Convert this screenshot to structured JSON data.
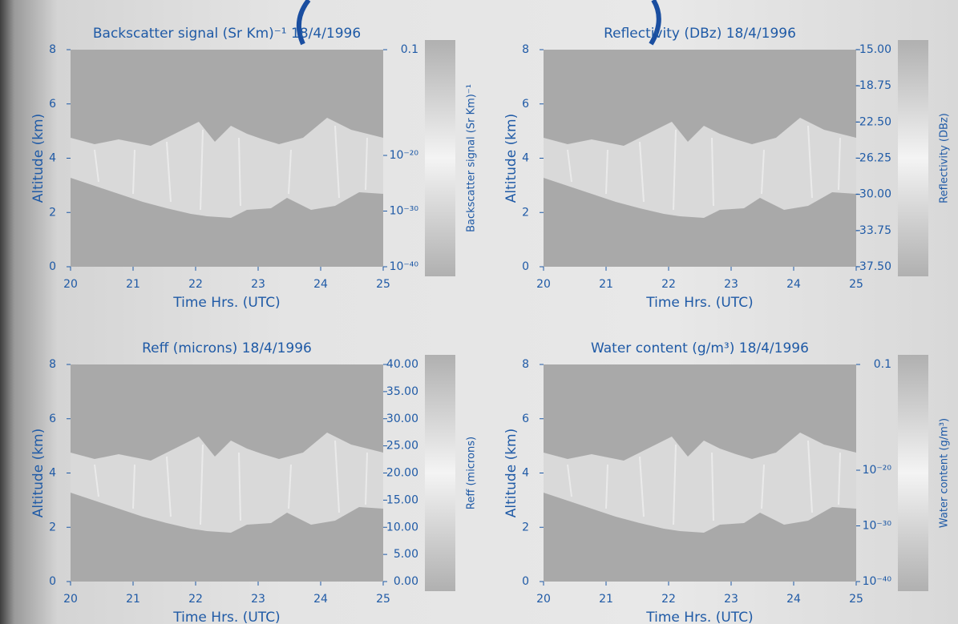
{
  "chart_data": [
    {
      "type": "heatmap",
      "title": "Backscatter signal (Sr Km)⁻¹ 18/4/1996",
      "xlabel": "Time Hrs. (UTC)",
      "ylabel": "Altitude (km)",
      "xlim": [
        20,
        25
      ],
      "xticks": [
        20,
        21,
        22,
        23,
        24,
        25
      ],
      "ylim": [
        0,
        8
      ],
      "yticks": [
        0,
        2,
        4,
        6,
        8
      ],
      "colorbar": {
        "label": "Backscatter signal (Sr Km)⁻¹",
        "log": true,
        "lim": [
          1e-40,
          0.1
        ],
        "ticks": [
          0.1,
          {
            "value": 1e-20,
            "label": "10⁻²⁰"
          },
          {
            "value": 1e-30,
            "label": "10⁻³⁰"
          },
          {
            "value": 1e-40,
            "label": "10⁻⁴⁰"
          }
        ]
      }
    },
    {
      "type": "heatmap",
      "title": "Reflectivity (DBz) 18/4/1996",
      "xlabel": "Time Hrs. (UTC)",
      "ylabel": "Altitude (km)",
      "xlim": [
        20,
        25
      ],
      "xticks": [
        20,
        21,
        22,
        23,
        24,
        25
      ],
      "ylim": [
        0,
        8
      ],
      "yticks": [
        0,
        2,
        4,
        6,
        8
      ],
      "colorbar": {
        "label": "Reflectivity (DBz)",
        "log": false,
        "lim": [
          -37.5,
          -15
        ],
        "ticks": [
          {
            "value": -15,
            "label": "-15.00"
          },
          {
            "value": -18.75,
            "label": "-18.75"
          },
          {
            "value": -22.5,
            "label": "-22.50"
          },
          {
            "value": -26.25,
            "label": "-26.25"
          },
          {
            "value": -30,
            "label": "-30.00"
          },
          {
            "value": -33.75,
            "label": "-33.75"
          },
          {
            "value": -37.5,
            "label": "-37.50"
          }
        ]
      }
    },
    {
      "type": "heatmap",
      "title": "Reff (microns) 18/4/1996",
      "xlabel": "Time Hrs. (UTC)",
      "ylabel": "Altitude (km)",
      "xlim": [
        20,
        25
      ],
      "xticks": [
        20,
        21,
        22,
        23,
        24,
        25
      ],
      "ylim": [
        0,
        8
      ],
      "yticks": [
        0,
        2,
        4,
        6,
        8
      ],
      "colorbar": {
        "label": "Reff (microns)",
        "log": false,
        "lim": [
          0,
          40
        ],
        "ticks": [
          {
            "value": 40,
            "label": "40.00"
          },
          {
            "value": 35,
            "label": "35.00"
          },
          {
            "value": 30,
            "label": "30.00"
          },
          {
            "value": 25,
            "label": "25.00"
          },
          {
            "value": 20,
            "label": "20.00"
          },
          {
            "value": 15,
            "label": "15.00"
          },
          {
            "value": 10,
            "label": "10.00"
          },
          {
            "value": 5,
            "label": "5.00"
          },
          {
            "value": 0,
            "label": "0.00"
          }
        ]
      }
    },
    {
      "type": "heatmap",
      "title": "Water content (g/m³) 18/4/1996",
      "xlabel": "Time Hrs. (UTC)",
      "ylabel": "Altitude (km)",
      "xlim": [
        20,
        25
      ],
      "xticks": [
        20,
        21,
        22,
        23,
        24,
        25
      ],
      "ylim": [
        0,
        8
      ],
      "yticks": [
        0,
        2,
        4,
        6,
        8
      ],
      "colorbar": {
        "label": "Water content (g/m³)",
        "log": true,
        "lim": [
          1e-40,
          0.1
        ],
        "ticks": [
          0.1,
          {
            "value": 1e-20,
            "label": "10⁻²⁰"
          },
          {
            "value": 1e-30,
            "label": "10⁻³⁰"
          },
          {
            "value": 1e-40,
            "label": "10⁻⁴⁰"
          }
        ]
      }
    }
  ]
}
